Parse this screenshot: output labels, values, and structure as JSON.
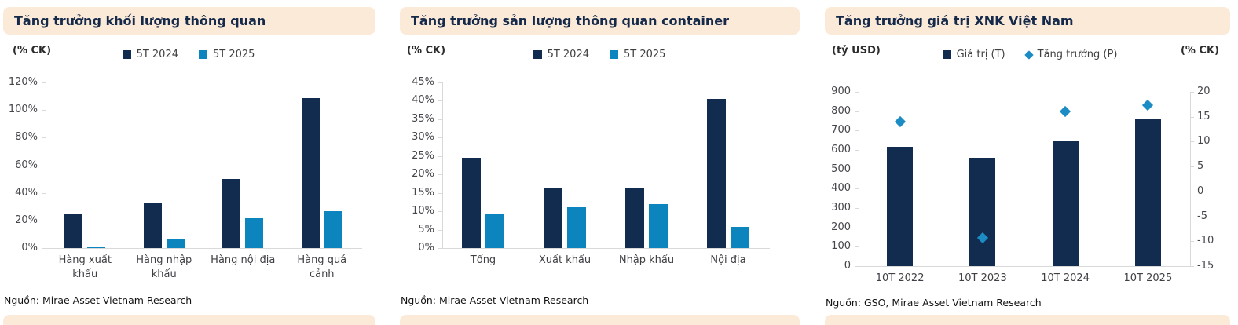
{
  "colors": {
    "navy": "#112c4e",
    "blue": "#0c85bf",
    "diamond_blue": "#1b8cc4",
    "band_peach": "#fcead9",
    "axis_line": "#d9d9d9"
  },
  "chart_data": [
    {
      "type": "bar",
      "title": "Tăng trưởng khối lượng thông quan",
      "unit_left": "(% CK)",
      "source": "Nguồn: Mirae Asset Vietnam Research",
      "categories": [
        "Hàng xuất khẩu",
        "Hàng nhập khẩu",
        "Hàng nội địa",
        "Hàng quá cảnh"
      ],
      "series": [
        {
          "name": "5T 2024",
          "kind": "bar",
          "marker": "square",
          "color": "navy",
          "values": [
            25,
            32.5,
            50,
            108.5
          ]
        },
        {
          "name": "5T 2025",
          "kind": "bar",
          "marker": "square",
          "color": "blue",
          "values": [
            0.5,
            6.5,
            21.5,
            27
          ]
        }
      ],
      "left_axis": {
        "min": 0,
        "max": 120,
        "step": 20,
        "format": "percent"
      },
      "legend_position": "top",
      "grid": "off"
    },
    {
      "type": "bar",
      "title": "Tăng trưởng sản lượng thông quan container",
      "unit_left": "(% CK)",
      "source": "Nguồn: Mirae Asset Vietnam Research",
      "categories": [
        "Tổng",
        "Xuất khẩu",
        "Nhập khẩu",
        "Nội địa"
      ],
      "series": [
        {
          "name": "5T 2024",
          "kind": "bar",
          "marker": "square",
          "color": "navy",
          "values": [
            24.5,
            16.5,
            16.5,
            40.5
          ]
        },
        {
          "name": "5T 2025",
          "kind": "bar",
          "marker": "square",
          "color": "blue",
          "values": [
            9.3,
            11,
            12,
            5.7
          ]
        }
      ],
      "left_axis": {
        "min": 0,
        "max": 45,
        "step": 5,
        "format": "percent"
      },
      "legend_position": "top",
      "grid": "off"
    },
    {
      "type": "combo",
      "title": "Tăng trưởng giá trị XNK Việt Nam",
      "unit_left": "(tỷ USD)",
      "unit_right": "(% CK)",
      "source": "Nguồn: GSO, Mirae Asset Vietnam Research",
      "categories": [
        "10T 2022",
        "10T 2023",
        "10T 2024",
        "10T 2025"
      ],
      "series": [
        {
          "name": "Giá trị (T)",
          "kind": "bar",
          "axis": "left",
          "marker": "square",
          "color": "navy",
          "values": [
            616,
            558,
            650,
            762
          ]
        },
        {
          "name": "Tăng trưởng (P)",
          "kind": "scatter",
          "axis": "right",
          "marker": "diamond",
          "color": "diamond_blue",
          "values": [
            14,
            -9.4,
            16,
            17.3
          ]
        }
      ],
      "left_axis": {
        "min": 0,
        "max": 900,
        "step": 100,
        "format": "number"
      },
      "right_axis": {
        "min": -15,
        "max": 20,
        "step": 5,
        "format": "number"
      },
      "legend_position": "top",
      "grid": "off"
    }
  ]
}
